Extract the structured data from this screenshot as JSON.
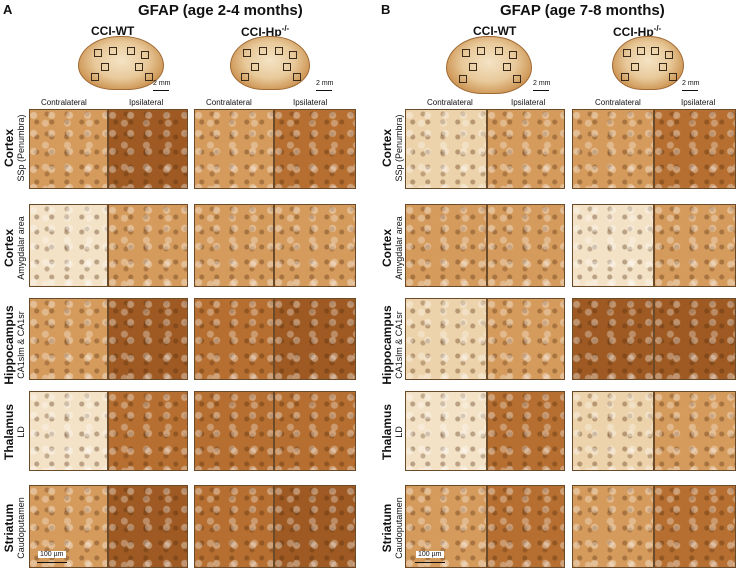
{
  "panels": [
    {
      "letter": "A",
      "title": "GFAP (age 2-4 months)",
      "groups": [
        "CCI-WT",
        "CCI-Hp-/-"
      ],
      "scale_brain": "2 mm",
      "scale_tile": "100 µm"
    },
    {
      "letter": "B",
      "title": "GFAP (age 7-8 months)",
      "groups": [
        "CCI-WT",
        "CCI-Hp-/-"
      ],
      "scale_brain": "2 mm",
      "scale_tile": "100 µm"
    }
  ],
  "columns": [
    "Contralateral",
    "Ipsilateral"
  ],
  "rows": [
    {
      "region": "Cortex",
      "sub": "SSp (Penumbra)"
    },
    {
      "region": "Cortex",
      "sub": "Amygdalar area"
    },
    {
      "region": "Hippocampus",
      "sub": "CA1slm & CA1sr"
    },
    {
      "region": "Thalamus",
      "sub": "LD"
    },
    {
      "region": "Striatum",
      "sub": "Caudoputamen"
    }
  ]
}
